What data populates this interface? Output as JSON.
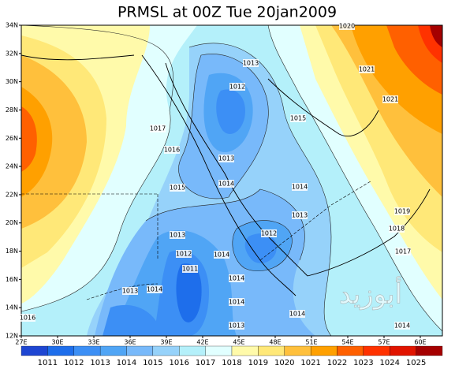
{
  "title": "PRMSL at 00Z Tue 20jan2009",
  "lat_ticks": [
    {
      "value": 34,
      "label": "34N"
    },
    {
      "value": 32,
      "label": "32N"
    },
    {
      "value": 30,
      "label": "30N"
    },
    {
      "value": 28,
      "label": "28N"
    },
    {
      "value": 26,
      "label": "26N"
    },
    {
      "value": 24,
      "label": "24N"
    },
    {
      "value": 22,
      "label": "22N"
    },
    {
      "value": 20,
      "label": "20N"
    },
    {
      "value": 18,
      "label": "18N"
    },
    {
      "value": 16,
      "label": "16N"
    },
    {
      "value": 14,
      "label": "14N"
    },
    {
      "value": 12,
      "label": "12N"
    }
  ],
  "lon_ticks": [
    {
      "value": 27,
      "label": "27E"
    },
    {
      "value": 30,
      "label": "30E"
    },
    {
      "value": 33,
      "label": "33E"
    },
    {
      "value": 36,
      "label": "36E"
    },
    {
      "value": 39,
      "label": "39E"
    },
    {
      "value": 42,
      "label": "42E"
    },
    {
      "value": 45,
      "label": "45E"
    },
    {
      "value": 48,
      "label": "48E"
    },
    {
      "value": 51,
      "label": "51E"
    },
    {
      "value": 54,
      "label": "54E"
    },
    {
      "value": 57,
      "label": "57E"
    },
    {
      "value": 60,
      "label": "60E"
    }
  ],
  "colorbar": {
    "levels": [
      1011,
      1012,
      1013,
      1014,
      1015,
      1016,
      1017,
      1018,
      1019,
      1020,
      1021,
      1022,
      1023,
      1024,
      1025
    ],
    "colors": [
      "#1e46d2",
      "#1e6eeb",
      "#3c8ff5",
      "#50a5f5",
      "#78b9fa",
      "#96d2fa",
      "#b4f0fa",
      "#e1ffff",
      "#fffaaa",
      "#ffe878",
      "#ffc03c",
      "#ffa000",
      "#ff6000",
      "#ff3200",
      "#e11400",
      "#a50000"
    ]
  },
  "contour_labels": [
    "1020",
    "1013",
    "1012",
    "1021",
    "1021",
    "1017",
    "1015",
    "1016",
    "1013",
    "1014",
    "1015",
    "1014",
    "1013",
    "1019",
    "1018",
    "1012",
    "1013",
    "1012",
    "1014",
    "1017",
    "1011",
    "1014",
    "1013",
    "1014",
    "1014",
    "1014",
    "1016",
    "1013",
    "1014"
  ],
  "watermark": "أبوزيد"
}
